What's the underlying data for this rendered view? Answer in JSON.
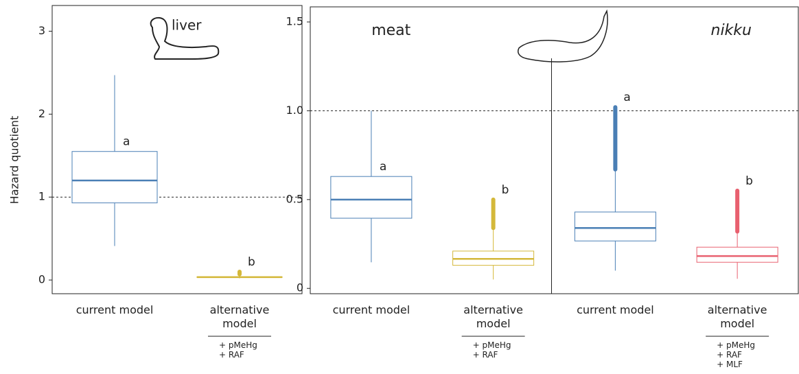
{
  "chart_data": [
    {
      "type": "box",
      "organ": "liver",
      "y_label": "Hazard quotient",
      "categories": [
        "current model",
        "alternative model"
      ],
      "notes": [
        null,
        [
          "+ pMeHg",
          "+ RAF"
        ]
      ],
      "letters": [
        "a",
        "b"
      ],
      "boxes": [
        {
          "min": 0.41,
          "q1": 0.93,
          "median": 1.2,
          "q3": 1.55,
          "max": 2.47,
          "outlier_low": null,
          "outlier_high": null,
          "color": "#4a7fb5"
        },
        {
          "min": 0.02,
          "q1": 0.03,
          "median": 0.035,
          "q3": 0.04,
          "max": 0.06,
          "outlier_low": 0.07,
          "outlier_high": 0.1,
          "color": "#d4b83a"
        }
      ],
      "threshold": 1,
      "ylim": [
        -0.165,
        3.31
      ],
      "yticks": [
        0,
        1,
        2,
        3
      ]
    },
    {
      "type": "box",
      "facets": [
        "meat",
        "nikku"
      ],
      "categories": [
        "current model",
        "alternative model",
        "current model",
        "alternative model"
      ],
      "notes": [
        null,
        [
          "+ pMeHg",
          "+ RAF"
        ],
        null,
        [
          "+ pMeHg",
          "+ RAF",
          "+ MLF"
        ]
      ],
      "letters": [
        "a",
        "b",
        "a",
        "b"
      ],
      "boxes": [
        {
          "min": 0.147,
          "q1": 0.395,
          "median": 0.5,
          "q3": 0.63,
          "max": 1.0,
          "outlier_low": null,
          "outlier_high": null,
          "color": "#4a7fb5"
        },
        {
          "min": 0.05,
          "q1": 0.13,
          "median": 0.166,
          "q3": 0.21,
          "max": 0.33,
          "outlier_low": 0.34,
          "outlier_high": 0.5,
          "color": "#d4b83a"
        },
        {
          "min": 0.1,
          "q1": 0.267,
          "median": 0.34,
          "q3": 0.43,
          "max": 0.66,
          "outlier_low": 0.67,
          "outlier_high": 1.02,
          "color": "#4a7fb5"
        },
        {
          "min": 0.054,
          "q1": 0.147,
          "median": 0.182,
          "q3": 0.232,
          "max": 0.31,
          "outlier_low": 0.32,
          "outlier_high": 0.55,
          "color": "#e8606f"
        }
      ],
      "threshold": 1,
      "ylim": [
        -0.03,
        1.585
      ],
      "yticks": [
        0,
        0.5,
        {
          "value": 1,
          "label": "1.0"
        },
        1.5
      ]
    }
  ]
}
